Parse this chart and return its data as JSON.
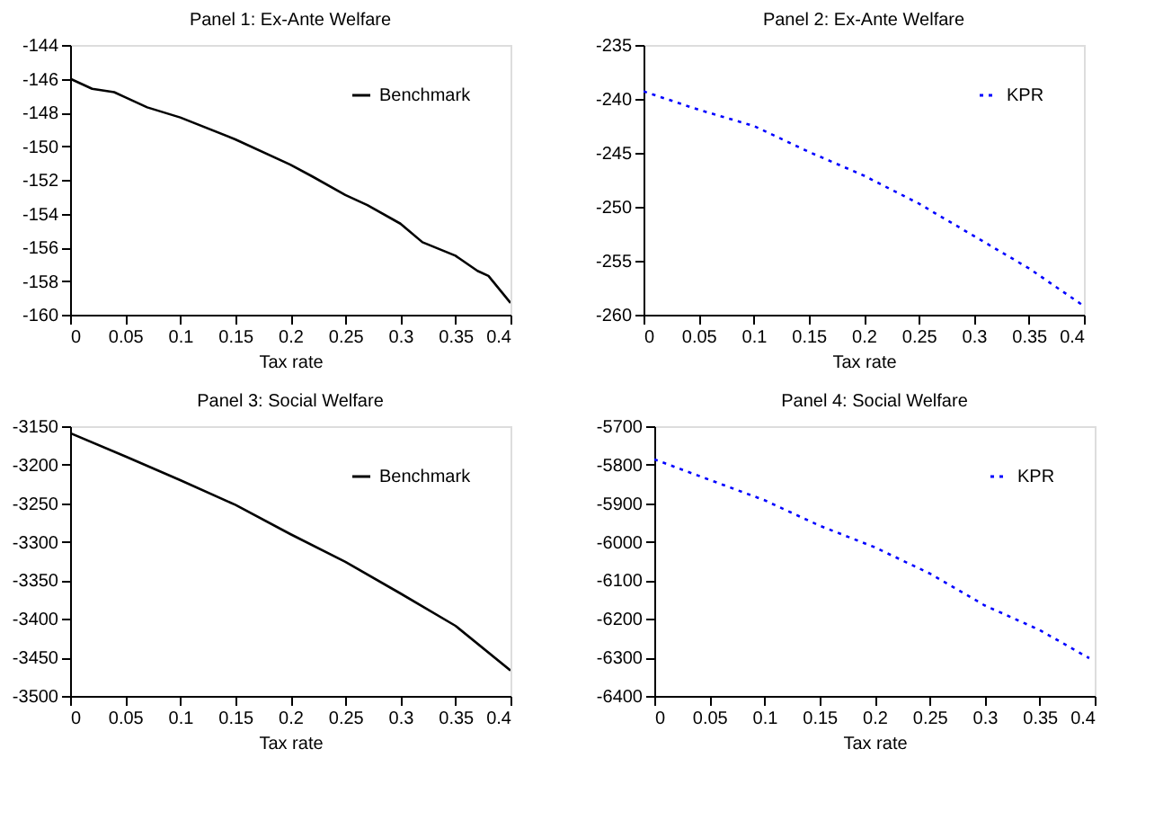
{
  "chart_data": [
    {
      "type": "line",
      "title": "Panel 1: Ex-Ante Welfare",
      "xlabel": "Tax rate",
      "legend": "top right",
      "grid": false,
      "line_style": "solid",
      "xlim": [
        0,
        0.4
      ],
      "xticks": [
        0,
        0.05,
        0.1,
        0.15,
        0.2,
        0.25,
        0.3,
        0.35,
        0.4
      ],
      "ylim": [
        -160,
        -144
      ],
      "yticks": [
        -160,
        -158,
        -156,
        -154,
        -152,
        -150,
        -148,
        -146,
        -144
      ],
      "x": [
        0,
        0.02,
        0.04,
        0.05,
        0.07,
        0.1,
        0.15,
        0.2,
        0.22,
        0.25,
        0.27,
        0.3,
        0.32,
        0.35,
        0.37,
        0.38,
        0.4
      ],
      "series": [
        {
          "name": "Benchmark",
          "color": "#000000",
          "values": [
            -146.0,
            -146.6,
            -146.8,
            -147.1,
            -147.7,
            -148.3,
            -149.6,
            -151.1,
            -151.8,
            -152.9,
            -153.5,
            -154.6,
            -155.7,
            -156.5,
            -157.4,
            -157.7,
            -159.3
          ]
        }
      ]
    },
    {
      "type": "line",
      "title": "Panel 2: Ex-Ante Welfare",
      "xlabel": "Tax rate",
      "legend": "top right",
      "grid": false,
      "line_style": "dotted",
      "xlim": [
        0,
        0.4
      ],
      "xticks": [
        0,
        0.05,
        0.1,
        0.15,
        0.2,
        0.25,
        0.3,
        0.35,
        0.4
      ],
      "ylim": [
        -260,
        -235
      ],
      "yticks": [
        -260,
        -255,
        -250,
        -245,
        -240,
        -235
      ],
      "x": [
        0,
        0.05,
        0.1,
        0.15,
        0.2,
        0.25,
        0.3,
        0.35,
        0.4
      ],
      "series": [
        {
          "name": "KPR",
          "color": "#0000ff",
          "values": [
            -239.3,
            -241.0,
            -242.5,
            -244.9,
            -247.1,
            -249.7,
            -252.7,
            -255.7,
            -259.2
          ]
        }
      ]
    },
    {
      "type": "line",
      "title": "Panel 3: Social Welfare",
      "xlabel": "Tax rate",
      "legend": "top right",
      "grid": false,
      "line_style": "solid",
      "xlim": [
        0,
        0.4
      ],
      "xticks": [
        0,
        0.05,
        0.1,
        0.15,
        0.2,
        0.25,
        0.3,
        0.35,
        0.4
      ],
      "ylim": [
        -3500,
        -3150
      ],
      "yticks": [
        -3500,
        -3450,
        -3400,
        -3350,
        -3300,
        -3250,
        -3200,
        -3150
      ],
      "x": [
        0,
        0.05,
        0.1,
        0.15,
        0.2,
        0.25,
        0.3,
        0.35,
        0.4
      ],
      "series": [
        {
          "name": "Benchmark",
          "color": "#000000",
          "values": [
            -3159,
            -3189,
            -3220,
            -3252,
            -3290,
            -3326,
            -3367,
            -3409,
            -3467
          ]
        }
      ]
    },
    {
      "type": "line",
      "title": "Panel 4: Social Welfare",
      "xlabel": "Tax rate",
      "legend": "top right",
      "grid": false,
      "line_style": "dotted",
      "xlim": [
        0,
        0.4
      ],
      "xticks": [
        0,
        0.05,
        0.1,
        0.15,
        0.2,
        0.25,
        0.3,
        0.35,
        0.4
      ],
      "ylim": [
        -6400,
        -5700
      ],
      "yticks": [
        -6400,
        -6300,
        -6200,
        -6100,
        -6000,
        -5900,
        -5800,
        -5700
      ],
      "x": [
        0,
        0.05,
        0.1,
        0.15,
        0.2,
        0.25,
        0.3,
        0.35,
        0.395
      ],
      "series": [
        {
          "name": "KPR",
          "color": "#0000ff",
          "values": [
            -5786,
            -5839,
            -5892,
            -5958,
            -6014,
            -6082,
            -6165,
            -6229,
            -6302
          ]
        }
      ]
    }
  ]
}
